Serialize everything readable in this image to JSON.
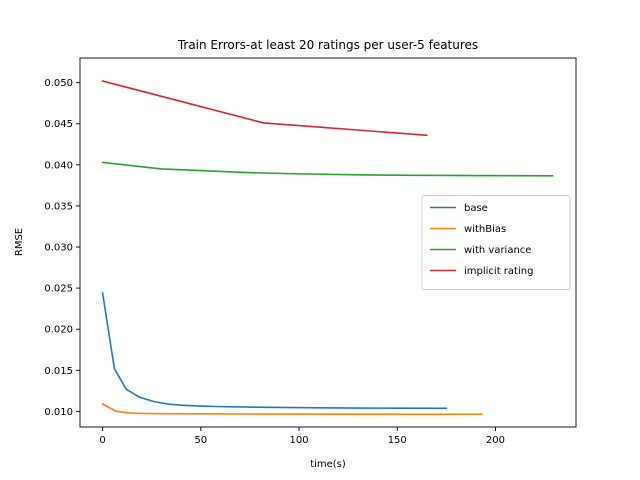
{
  "chart_data": {
    "type": "line",
    "title": "Train Errors-at least 20 ratings per user-5 features",
    "xlabel": "time(s)",
    "ylabel": "RMSE",
    "xlim": [
      -11.5,
      241
    ],
    "ylim": [
      0.0081,
      0.053
    ],
    "xticks": [
      0,
      50,
      100,
      150,
      200
    ],
    "xtick_labels": [
      "0",
      "50",
      "100",
      "150",
      "200"
    ],
    "yticks": [
      0.01,
      0.015,
      0.02,
      0.025,
      0.03,
      0.035,
      0.04,
      0.045,
      0.05
    ],
    "ytick_labels": [
      "0.010",
      "0.015",
      "0.020",
      "0.025",
      "0.030",
      "0.035",
      "0.040",
      "0.045",
      "0.050"
    ],
    "grid": false,
    "legend_position": "center-right",
    "series": [
      {
        "name": "base",
        "color": "#1f77b4",
        "x": [
          0,
          6,
          12,
          19,
          26,
          33,
          40,
          50,
          60,
          75,
          90,
          110,
          130,
          150,
          175
        ],
        "y": [
          0.0244,
          0.0152,
          0.0127,
          0.0117,
          0.0112,
          0.0109,
          0.01075,
          0.01065,
          0.01058,
          0.01052,
          0.01048,
          0.01044,
          0.01041,
          0.01039,
          0.01037
        ]
      },
      {
        "name": "withBias",
        "color": "#ff7f0e",
        "x": [
          0,
          7,
          14,
          21,
          30,
          45,
          60,
          80,
          100,
          120,
          140,
          160,
          180,
          193
        ],
        "y": [
          0.0109,
          0.01,
          0.0098,
          0.00975,
          0.00972,
          0.0097,
          0.00969,
          0.00968,
          0.00967,
          0.00966,
          0.00966,
          0.00965,
          0.00965,
          0.00965
        ]
      },
      {
        "name": "with variance",
        "color": "#2ca02c",
        "x": [
          0,
          15,
          30,
          50,
          75,
          100,
          130,
          160,
          190,
          229
        ],
        "y": [
          0.0403,
          0.0399,
          0.0395,
          0.0393,
          0.03905,
          0.0389,
          0.03878,
          0.03872,
          0.03869,
          0.03866
        ]
      },
      {
        "name": "implicit rating",
        "color": "#d62728",
        "x": [
          0,
          82,
          165
        ],
        "y": [
          0.0502,
          0.0451,
          0.0436
        ]
      }
    ]
  }
}
